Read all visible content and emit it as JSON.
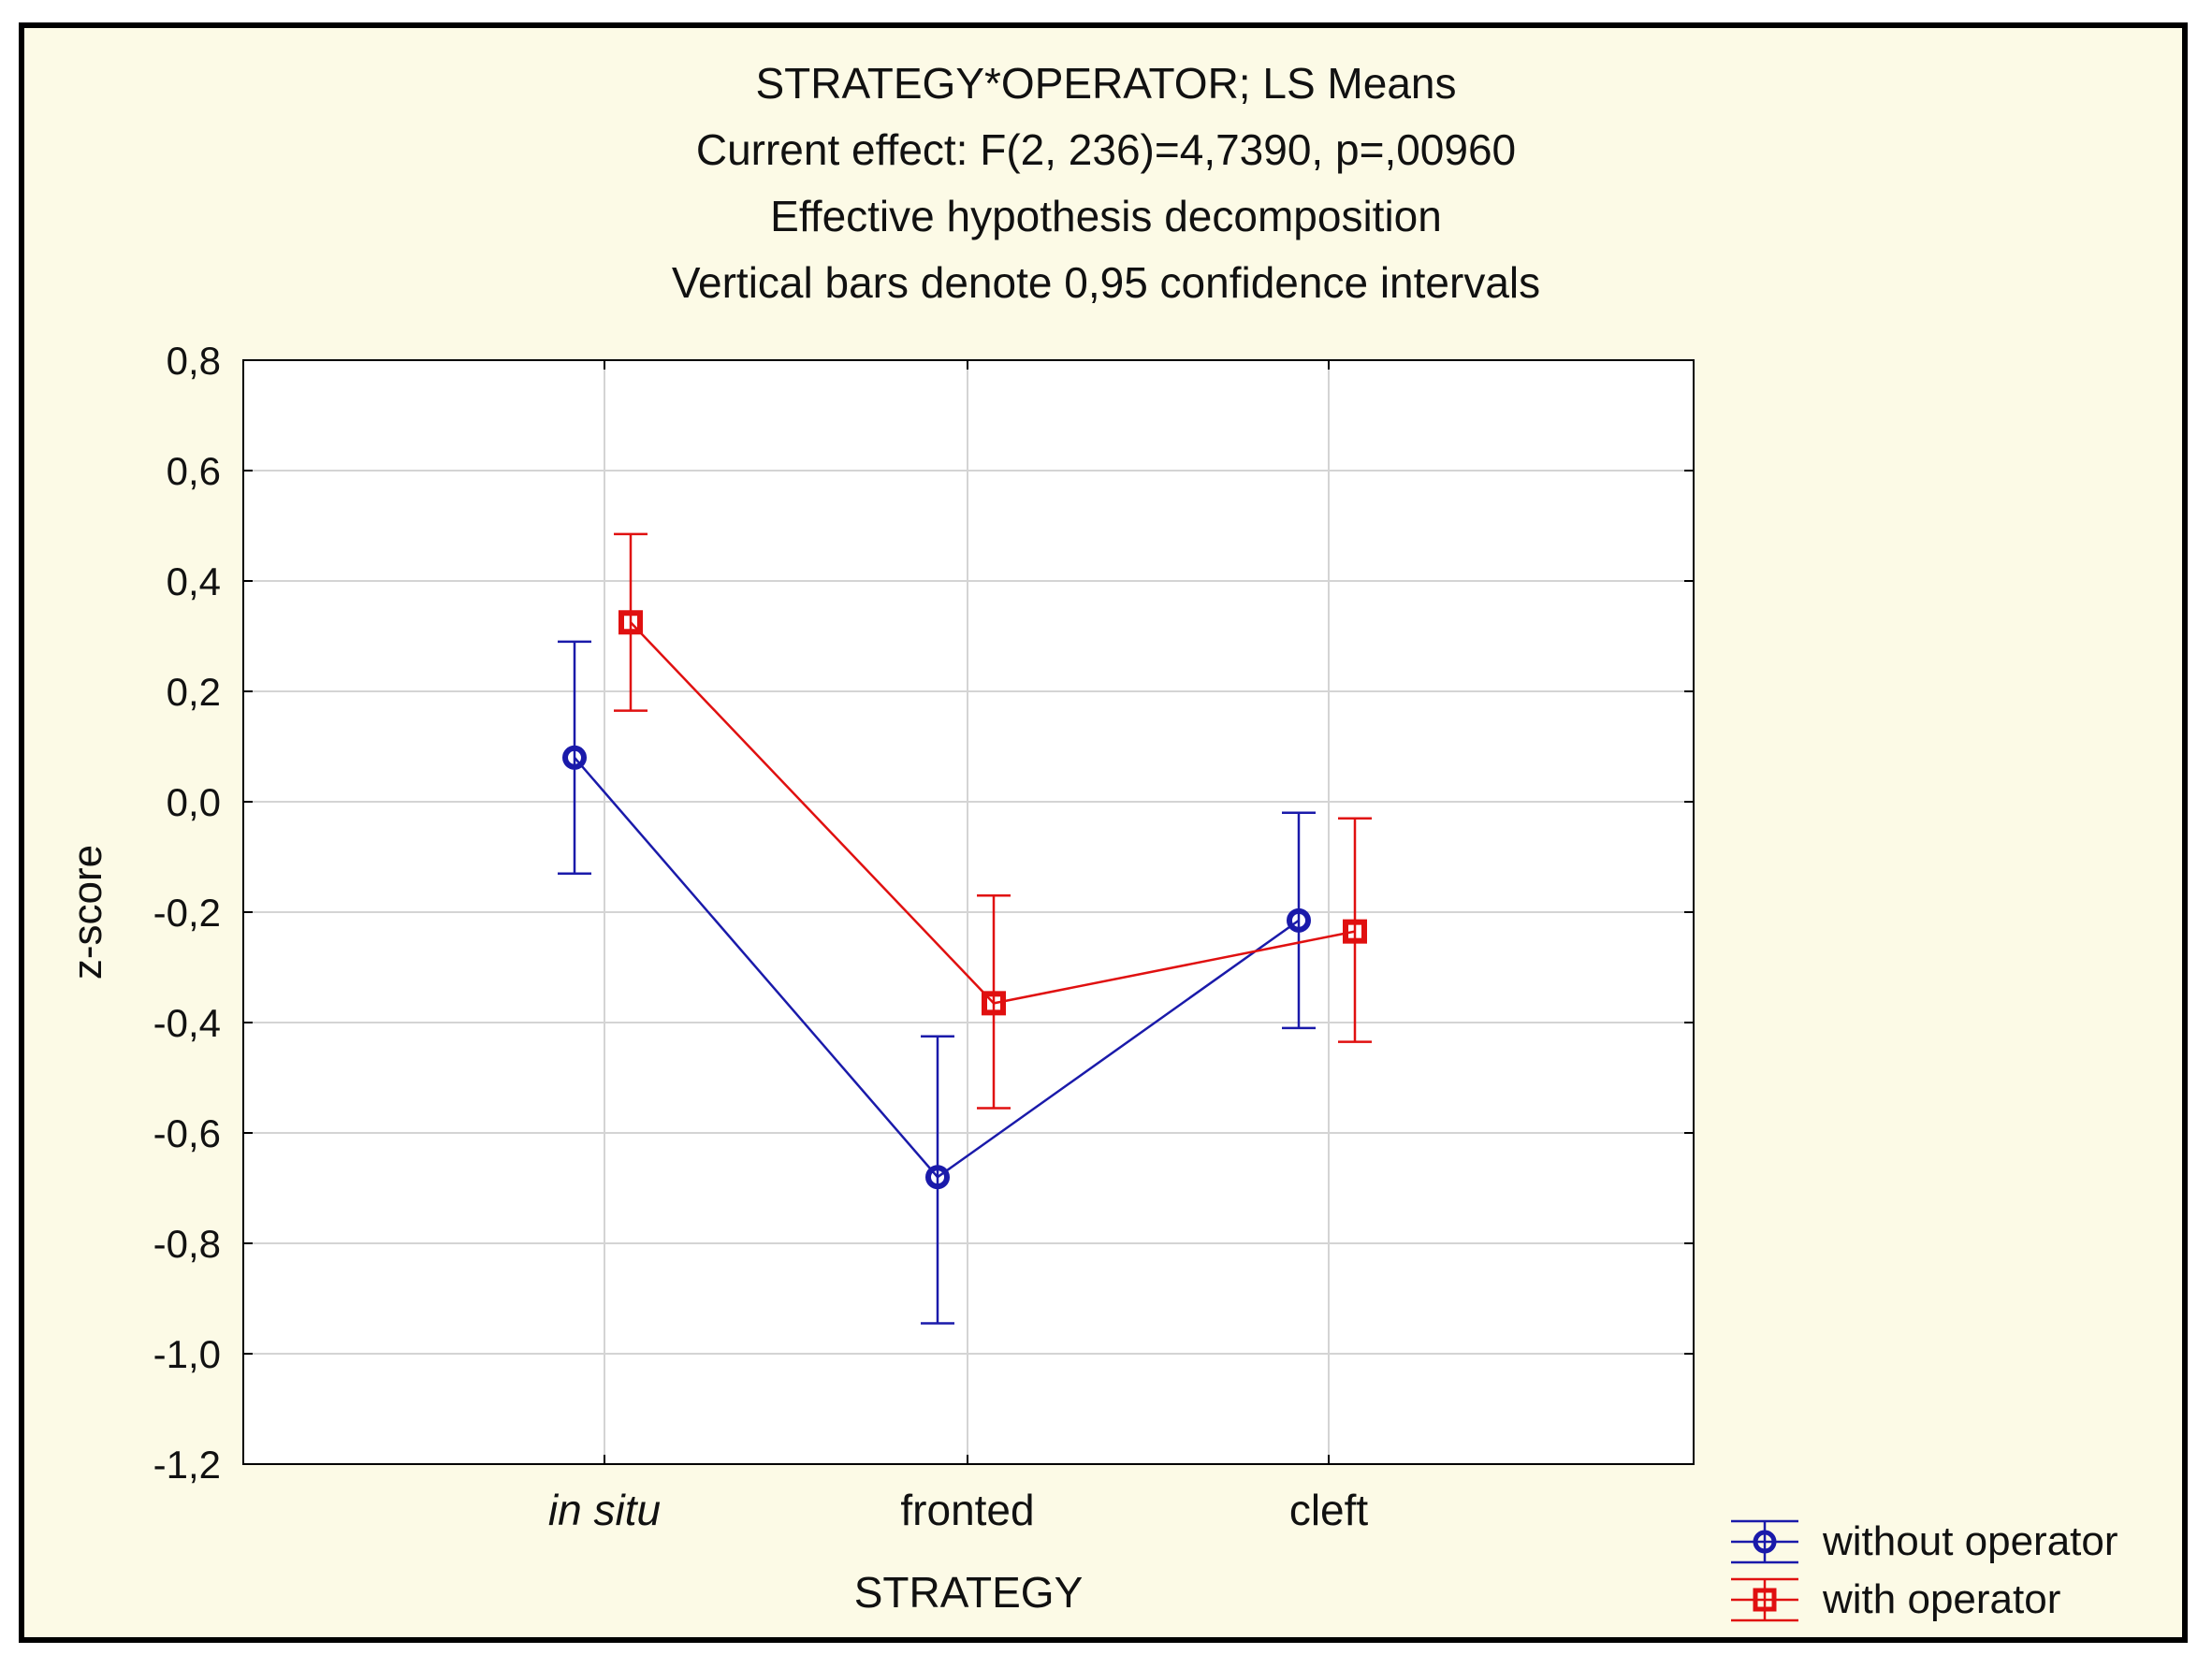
{
  "chart_data": {
    "type": "line",
    "title_lines": [
      "STRATEGY*OPERATOR; LS Means",
      "Current effect: F(2, 236)=4,7390, p=,00960",
      "Effective hypothesis decomposition",
      "Vertical bars denote 0,95 confidence intervals"
    ],
    "xlabel": "STRATEGY",
    "ylabel": "z-score",
    "categories": [
      "in situ",
      "fronted",
      "cleft"
    ],
    "ylim": [
      -1.2,
      0.8
    ],
    "yticks": [
      0.8,
      0.6,
      0.4,
      0.2,
      0.0,
      -0.2,
      -0.4,
      -0.6,
      -0.8,
      -1.0,
      -1.2
    ],
    "ytick_labels": [
      "0,8",
      "0,6",
      "0,4",
      "0,2",
      "0,0",
      "-0,2",
      "-0,4",
      "-0,6",
      "-0,8",
      "-1,0",
      "-1,2"
    ],
    "grid": true,
    "legend_position": "bottom-right",
    "series": [
      {
        "name": "without operator",
        "color": "#1a1aaa",
        "marker": "circle",
        "values": [
          0.08,
          -0.68,
          -0.215
        ],
        "ci_low": [
          -0.13,
          -0.945,
          -0.41
        ],
        "ci_high": [
          0.29,
          -0.425,
          -0.02
        ]
      },
      {
        "name": "with operator",
        "color": "#e01010",
        "marker": "square",
        "values": [
          0.325,
          -0.365,
          -0.235
        ],
        "ci_low": [
          0.165,
          -0.555,
          -0.435
        ],
        "ci_high": [
          0.485,
          -0.17,
          -0.03
        ]
      }
    ]
  }
}
